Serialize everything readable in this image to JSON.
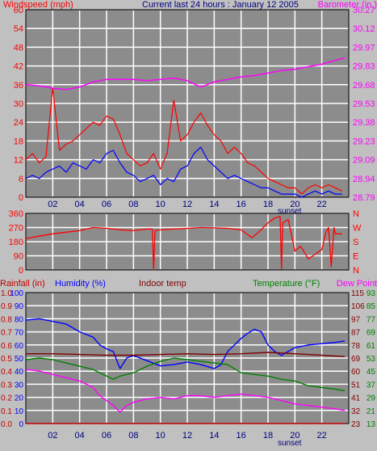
{
  "chart_data": [
    {
      "type": "line",
      "panel": "wind-baro",
      "title": "Current last 24 hours : January 12 2005",
      "left_axis_label": "Windspeed (mph)",
      "right_axis_label": "Barometer (in.)",
      "left_ticks": [
        "0",
        "6",
        "12",
        "18",
        "24",
        "30",
        "36",
        "42",
        "48",
        "54",
        "60"
      ],
      "left_range": [
        0,
        60
      ],
      "right_ticks": [
        "28.79",
        "28.94",
        "29.09",
        "29.23",
        "29.38",
        "29.53",
        "29.68",
        "29.83",
        "29.97",
        "30.12",
        "30.27"
      ],
      "right_range": [
        28.79,
        30.27
      ],
      "x_ticks": [
        "02",
        "04",
        "06",
        "08",
        "10",
        "12",
        "14",
        "16",
        "18",
        "20",
        "22"
      ],
      "x_range": [
        0,
        24
      ],
      "sunset_label": "sunset",
      "grid": true,
      "colors": {
        "gust": "#ff0000",
        "wind": "#0000ff",
        "baro": "#ff00ff",
        "left_axis": "#ff0000",
        "right_axis": "#ff00ff",
        "title": "#000080"
      },
      "series": [
        {
          "name": "Windspeed (mph)",
          "role": "wind",
          "color": "#0000ff",
          "x": [
            0,
            0.5,
            1,
            1.5,
            2,
            2.5,
            3,
            3.5,
            4,
            4.5,
            5,
            5.5,
            6,
            6.5,
            7,
            7.5,
            8,
            8.5,
            9,
            9.5,
            10,
            10.5,
            11,
            11.5,
            12,
            12.5,
            13,
            13.5,
            14,
            14.5,
            15,
            15.5,
            16,
            16.5,
            17,
            17.5,
            18,
            18.5,
            19,
            19.5,
            20,
            20.5,
            21,
            21.5,
            22,
            22.5,
            23,
            23.5
          ],
          "y": [
            6,
            7,
            6,
            8,
            9,
            10,
            8,
            11,
            10,
            9,
            12,
            11,
            14,
            15,
            11,
            8,
            7,
            5,
            6,
            7,
            4,
            6,
            5,
            9,
            10,
            14,
            16,
            12,
            10,
            8,
            6,
            7,
            6,
            5,
            4,
            3,
            3,
            2,
            1,
            1,
            1,
            0,
            1,
            2,
            1,
            2,
            1,
            1
          ]
        },
        {
          "name": "Wind gust",
          "role": "gust",
          "color": "#ff0000",
          "x": [
            0,
            0.5,
            1,
            1.5,
            2,
            2.5,
            3,
            3.5,
            4,
            4.5,
            5,
            5.5,
            6,
            6.5,
            7,
            7.5,
            8,
            8.5,
            9,
            9.5,
            10,
            10.5,
            11,
            11.5,
            12,
            12.5,
            13,
            13.5,
            14,
            14.5,
            15,
            15.5,
            16,
            16.5,
            17,
            17.5,
            18,
            18.5,
            19,
            19.5,
            20,
            20.5,
            21,
            21.5,
            22,
            22.5,
            23,
            23.5
          ],
          "y": [
            12,
            14,
            11,
            13,
            35,
            15,
            17,
            18,
            20,
            22,
            24,
            23,
            26,
            25,
            20,
            14,
            12,
            10,
            11,
            14,
            9,
            14,
            31,
            18,
            20,
            24,
            27,
            23,
            20,
            18,
            14,
            16,
            14,
            11,
            10,
            8,
            6,
            5,
            4,
            3,
            3,
            1,
            3,
            4,
            3,
            4,
            3,
            2
          ]
        },
        {
          "name": "Barometer (in.)",
          "role": "baro",
          "color": "#ff00ff",
          "x": [
            0,
            1,
            2,
            3,
            4,
            5,
            6,
            7,
            8,
            9,
            10,
            11,
            12,
            13,
            14,
            15,
            16,
            17,
            18,
            19,
            20,
            21,
            22,
            23,
            23.7
          ],
          "y": [
            29.68,
            29.67,
            29.65,
            29.64,
            29.66,
            29.7,
            29.72,
            29.72,
            29.72,
            29.71,
            29.72,
            29.73,
            29.71,
            29.66,
            29.7,
            29.72,
            29.74,
            29.75,
            29.77,
            29.79,
            29.8,
            29.82,
            29.84,
            29.87,
            29.89
          ]
        }
      ]
    },
    {
      "type": "line",
      "panel": "wind-direction",
      "left_ticks": [
        "0",
        "90",
        "180",
        "270",
        "360"
      ],
      "left_range": [
        0,
        360
      ],
      "right_ticks": [
        "N",
        "W",
        "S",
        "E",
        "N"
      ],
      "x_range": [
        0,
        24
      ],
      "grid": true,
      "colors": {
        "dir": "#ff0000",
        "left_axis": "#ff0000",
        "right_axis": "#ff0000"
      },
      "series": [
        {
          "name": "Wind direction",
          "role": "dir",
          "color": "#ff0000",
          "x": [
            0,
            1,
            2,
            3,
            4,
            5,
            6,
            7,
            8,
            9,
            9.4,
            9.5,
            9.6,
            10,
            11,
            12,
            13,
            14,
            15,
            16,
            16.8,
            17.3,
            18,
            18.5,
            18.9,
            19,
            19.1,
            19.5,
            20,
            20.4,
            20.5,
            21,
            21.5,
            22,
            22.3,
            22.5,
            22.7,
            22.9,
            23,
            23.5
          ],
          "y": [
            200,
            215,
            230,
            240,
            250,
            270,
            265,
            255,
            250,
            260,
            260,
            0,
            250,
            255,
            260,
            265,
            270,
            268,
            265,
            255,
            205,
            240,
            300,
            330,
            340,
            5,
            300,
            320,
            120,
            150,
            140,
            70,
            100,
            130,
            240,
            270,
            20,
            270,
            230,
            230
          ]
        }
      ]
    },
    {
      "type": "line",
      "panel": "humidity-temp",
      "labels": {
        "rainfall": "Rainfall (in)",
        "humidity": "Humidity (%)",
        "indoor": "Indoor temp",
        "temperature": "Temperature (°F)",
        "dewpoint": "Dew Point"
      },
      "rain_ticks": [
        "0.0",
        "0.1",
        "0.2",
        "0.3",
        "0.4",
        "0.5",
        "0.6",
        "0.7",
        "0.8",
        "0.9",
        "1.0"
      ],
      "rain_range": [
        0,
        1
      ],
      "humidity_ticks": [
        "0",
        "10",
        "20",
        "30",
        "40",
        "50",
        "60",
        "70",
        "80",
        "90",
        "100"
      ],
      "humidity_range": [
        0,
        100
      ],
      "indoor_ticks": [
        "23",
        "32",
        "41",
        "51",
        "60",
        "69",
        "78",
        "87",
        "97",
        "106",
        "115"
      ],
      "indoor_range": [
        23,
        115
      ],
      "temp_ticks": [
        "13",
        "21",
        "29",
        "37",
        "45",
        "53",
        "61",
        "69",
        "77",
        "85",
        "93"
      ],
      "temp_range": [
        13,
        93
      ],
      "x_ticks": [
        "02",
        "04",
        "06",
        "08",
        "10",
        "12",
        "14",
        "16",
        "18",
        "20",
        "22"
      ],
      "x_range": [
        0,
        24
      ],
      "sunset_label": "sunset",
      "grid": true,
      "colors": {
        "rain": "#c00000",
        "humidity": "#0000ff",
        "indoor": "#800000",
        "temperature": "#008000",
        "dewpoint": "#ff00ff"
      },
      "series": [
        {
          "name": "Humidity (%)",
          "role": "humidity",
          "color": "#0000ff",
          "x": [
            0,
            1,
            2,
            3,
            4,
            5,
            5.5,
            6,
            6.5,
            7,
            7.5,
            8,
            9,
            10,
            11,
            12,
            13,
            14,
            14.5,
            15,
            16,
            16.5,
            17,
            17.5,
            18,
            18.5,
            19,
            19.5,
            20,
            21,
            22,
            23,
            23.7
          ],
          "y": [
            79,
            80,
            78,
            76,
            70,
            66,
            60,
            57,
            55,
            42,
            50,
            52,
            48,
            44,
            45,
            47,
            45,
            42,
            45,
            55,
            65,
            69,
            72,
            70,
            60,
            55,
            52,
            55,
            58,
            60,
            61,
            62,
            63
          ]
        },
        {
          "name": "Indoor temp",
          "role": "indoor",
          "color": "#800000",
          "x": [
            0,
            2,
            4,
            6,
            8,
            10,
            12,
            14,
            16,
            18,
            20,
            22,
            23.7
          ],
          "y": [
            72,
            72,
            71.5,
            71,
            71,
            71.5,
            72,
            71.5,
            72,
            73,
            72,
            71,
            70
          ]
        },
        {
          "name": "Temperature (°F)",
          "role": "temperature",
          "color": "#008000",
          "x": [
            0,
            1,
            2,
            3,
            4,
            5,
            6,
            6.5,
            7,
            8,
            9,
            10,
            11,
            12,
            13,
            14,
            15,
            16,
            17,
            18,
            19,
            20,
            21,
            22,
            23,
            23.7
          ],
          "y": [
            52,
            53,
            52,
            50,
            48,
            46,
            42,
            40,
            42,
            44,
            48,
            51,
            53,
            52,
            51,
            50,
            49,
            44,
            43,
            42,
            40,
            39,
            36,
            35,
            34,
            33
          ]
        },
        {
          "name": "Dew Point",
          "role": "dewpoint",
          "color": "#ff00ff",
          "x": [
            0,
            1,
            2,
            3,
            4,
            5,
            5.5,
            6,
            6.5,
            7,
            7.5,
            8,
            9,
            10,
            11,
            12,
            13,
            14,
            15,
            16,
            17,
            18,
            19,
            20,
            21,
            22,
            23,
            23.7
          ],
          "y": [
            46,
            45,
            43,
            41,
            39,
            35,
            30,
            27,
            24,
            20,
            24,
            26,
            28,
            29,
            28,
            30,
            30,
            29,
            30,
            31,
            30,
            29,
            27,
            25,
            24,
            23,
            22,
            21
          ]
        },
        {
          "name": "Rainfall (in)",
          "role": "rain",
          "color": "#c00000",
          "x": [
            0,
            23.7
          ],
          "y": [
            0,
            0
          ]
        }
      ]
    }
  ]
}
